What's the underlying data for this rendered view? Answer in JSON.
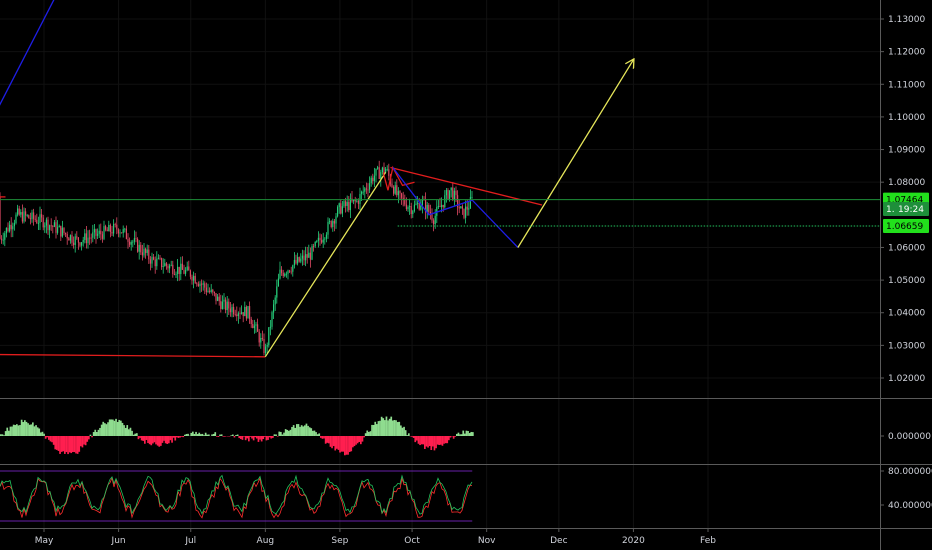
{
  "chart_data": [
    {
      "type": "line",
      "name": "price",
      "y_scale": "price",
      "ylim": [
        1.012,
        1.136
      ],
      "yticks": [
        "1.13000",
        "1.12000",
        "1.11000",
        "1.10000",
        "1.09000",
        "1.08000",
        "1.06000",
        "1.05000",
        "1.04000",
        "1.03000",
        "1.02000"
      ],
      "ytick_values": [
        1.13,
        1.12,
        1.11,
        1.1,
        1.09,
        1.08,
        1.06,
        1.05,
        1.04,
        1.03,
        1.02
      ],
      "x_axis": {
        "labels": [
          "May",
          "Jun",
          "Jul",
          "Aug",
          "Sep",
          "Oct",
          "Nov",
          "Dec",
          "2020",
          "Feb"
        ],
        "dates": [
          "2019-05-01",
          "2019-06-01",
          "2019-07-01",
          "2019-08-01",
          "2019-09-01",
          "2019-10-01",
          "2019-11-01",
          "2019-12-01",
          "2020-01-01",
          "2020-02-01"
        ]
      },
      "price_path": [
        {
          "date": "2019-04-10",
          "value": 1.0755
        },
        {
          "date": "2019-04-12",
          "value": 1.062
        },
        {
          "date": "2019-04-20",
          "value": 1.07
        },
        {
          "date": "2019-05-01",
          "value": 1.068
        },
        {
          "date": "2019-05-15",
          "value": 1.062
        },
        {
          "date": "2019-06-01",
          "value": 1.066
        },
        {
          "date": "2019-06-15",
          "value": 1.056
        },
        {
          "date": "2019-07-01",
          "value": 1.052
        },
        {
          "date": "2019-07-15",
          "value": 1.042
        },
        {
          "date": "2019-07-25",
          "value": 1.04
        },
        {
          "date": "2019-08-01",
          "value": 1.028
        },
        {
          "date": "2019-08-07",
          "value": 1.052
        },
        {
          "date": "2019-08-20",
          "value": 1.058
        },
        {
          "date": "2019-09-01",
          "value": 1.072
        },
        {
          "date": "2019-09-08",
          "value": 1.074
        },
        {
          "date": "2019-09-15",
          "value": 1.082
        },
        {
          "date": "2019-09-20",
          "value": 1.084
        },
        {
          "date": "2019-09-25",
          "value": 1.0755
        },
        {
          "date": "2019-10-01",
          "value": 1.072
        },
        {
          "date": "2019-10-05",
          "value": 1.074
        },
        {
          "date": "2019-10-10",
          "value": 1.069
        },
        {
          "date": "2019-10-17",
          "value": 1.078
        },
        {
          "date": "2019-10-22",
          "value": 1.07
        },
        {
          "date": "2019-10-26",
          "value": 1.0746
        }
      ],
      "lines": [
        {
          "id": "blue-top-line",
          "color": "#1e1ee6",
          "points": [
            {
              "date": "2019-04-10",
              "value": 1.1
            },
            {
              "date": "2019-05-08",
              "value": 1.14
            }
          ]
        },
        {
          "id": "red-upper-line",
          "color": "#e11d1d",
          "points": [
            {
              "date": "2019-04-10",
              "value": 1.0755
            },
            {
              "date": "2019-04-15",
              "value": 1.0755
            }
          ]
        },
        {
          "id": "red-support-line",
          "color": "#e11d1d",
          "points": [
            {
              "date": "2019-04-10",
              "value": 1.0272
            },
            {
              "date": "2019-08-01",
              "value": 1.0265
            }
          ]
        },
        {
          "id": "yellow-up-line",
          "color": "#e6e65a",
          "points": [
            {
              "date": "2019-08-01",
              "value": 1.0265
            },
            {
              "date": "2019-09-20",
              "value": 1.083
            }
          ]
        },
        {
          "id": "red-resistance-line",
          "color": "#e11d1d",
          "points": [
            {
              "date": "2019-09-22",
              "value": 1.0845
            },
            {
              "date": "2019-11-24",
              "value": 1.073
            }
          ]
        },
        {
          "id": "red-wave-line",
          "color": "#e11d1d",
          "points": [
            {
              "date": "2019-09-19",
              "value": 1.083
            },
            {
              "date": "2019-09-21",
              "value": 1.0775
            },
            {
              "date": "2019-09-23",
              "value": 1.0845
            },
            {
              "date": "2019-09-27",
              "value": 1.079
            },
            {
              "date": "2019-10-02",
              "value": 1.08
            }
          ]
        },
        {
          "id": "blue-down-line",
          "color": "#1e1ee6",
          "points": [
            {
              "date": "2019-09-23",
              "value": 1.0845
            },
            {
              "date": "2019-10-08",
              "value": 1.07
            },
            {
              "date": "2019-10-26",
              "value": 1.0745
            },
            {
              "date": "2019-11-14",
              "value": 1.06
            }
          ]
        },
        {
          "id": "yellow-projection-arrow",
          "color": "#e6e65a",
          "arrow": true,
          "points": [
            {
              "date": "2019-11-14",
              "value": 1.06
            },
            {
              "date": "2020-01-01",
              "value": 1.1175
            }
          ]
        }
      ],
      "hlines": [
        {
          "id": "current-price-line",
          "value": 1.07464,
          "color": "#1e8f3a",
          "style": "solid"
        },
        {
          "id": "dotted-level-line",
          "value": 1.06659,
          "color": "#22c55e",
          "style": "dotted",
          "from_date": "2019-09-25"
        }
      ],
      "badges": [
        {
          "id": "price-badge",
          "label": "1.07464",
          "value": 1.07464,
          "bg": "#22e01c"
        },
        {
          "id": "timer-badge",
          "label": "19:24",
          "value": 1.0718,
          "bg": "#1e8f3a",
          "prefix": "1."
        },
        {
          "id": "level-badge",
          "label": "1.06659",
          "value": 1.06659,
          "bg": "#22e01c"
        }
      ]
    },
    {
      "type": "area",
      "name": "oscillator",
      "yticks": [
        "0.000000"
      ],
      "ytick_values": [
        0
      ],
      "ylim": [
        -1.2,
        1.5
      ],
      "colors": {
        "positive": "#8fdc8f",
        "negative": "#ff1f4f"
      }
    },
    {
      "type": "line",
      "name": "oscillator-2",
      "yticks": [
        "80.000000",
        "40.000000"
      ],
      "ytick_values": [
        80,
        40
      ],
      "ylim": [
        20,
        85
      ],
      "bands": [
        {
          "value": 80
        },
        {
          "value": 20
        }
      ],
      "colors": {
        "line_a": "#22c55e",
        "line_b": "#ff2d2d"
      }
    }
  ]
}
